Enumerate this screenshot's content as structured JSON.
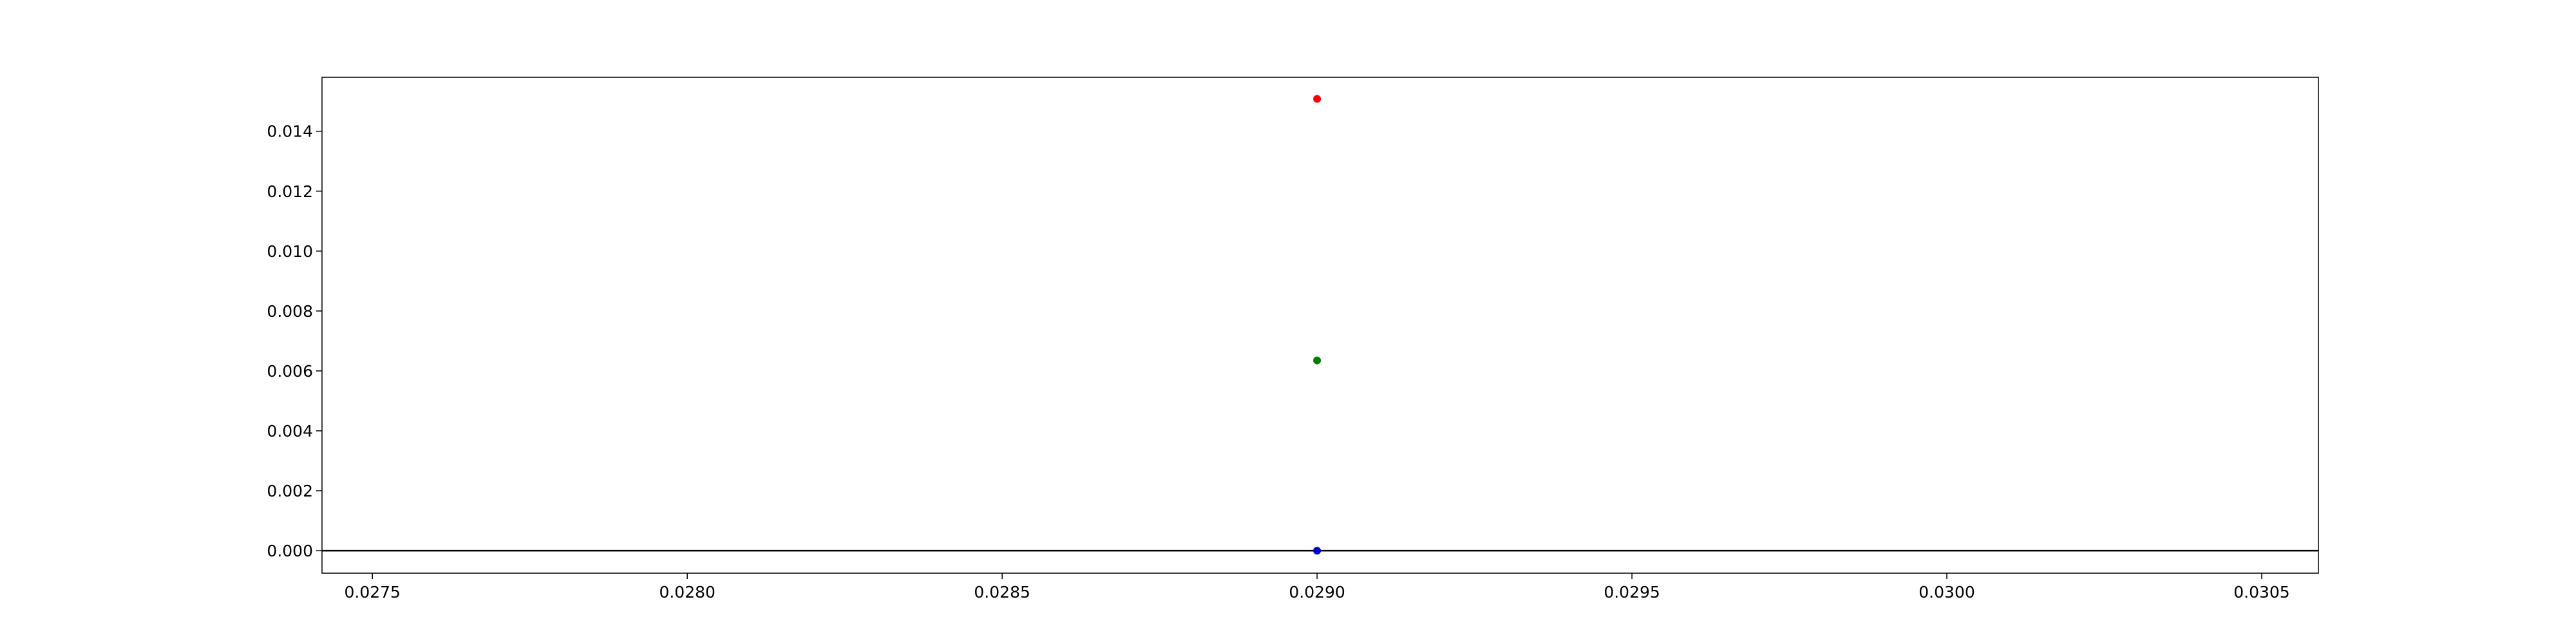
{
  "chart_data": {
    "type": "scatter",
    "title": "",
    "xlabel": "",
    "ylabel": "",
    "xlim": [
      0.02742,
      0.03059
    ],
    "ylim": [
      -0.00075,
      0.0158
    ],
    "x_ticks": [
      0.0275,
      0.028,
      0.0285,
      0.029,
      0.0295,
      0.03,
      0.0305
    ],
    "x_tick_labels": [
      "0.0275",
      "0.0280",
      "0.0285",
      "0.0290",
      "0.0295",
      "0.0300",
      "0.0305"
    ],
    "y_ticks": [
      0.0,
      0.002,
      0.004,
      0.006,
      0.008,
      0.01,
      0.012,
      0.014
    ],
    "y_tick_labels": [
      "0.000",
      "0.002",
      "0.004",
      "0.006",
      "0.008",
      "0.010",
      "0.012",
      "0.014"
    ],
    "grid": false,
    "legend": "none",
    "horizontal_lines": [
      {
        "y": 0.0,
        "color": "#000000"
      }
    ],
    "points": [
      {
        "x": 0.029,
        "y": 0.01508,
        "color": "#ff0000"
      },
      {
        "x": 0.029,
        "y": 0.00635,
        "color": "#008000"
      },
      {
        "x": 0.029,
        "y": 0.0,
        "color": "#0000cd"
      }
    ]
  }
}
